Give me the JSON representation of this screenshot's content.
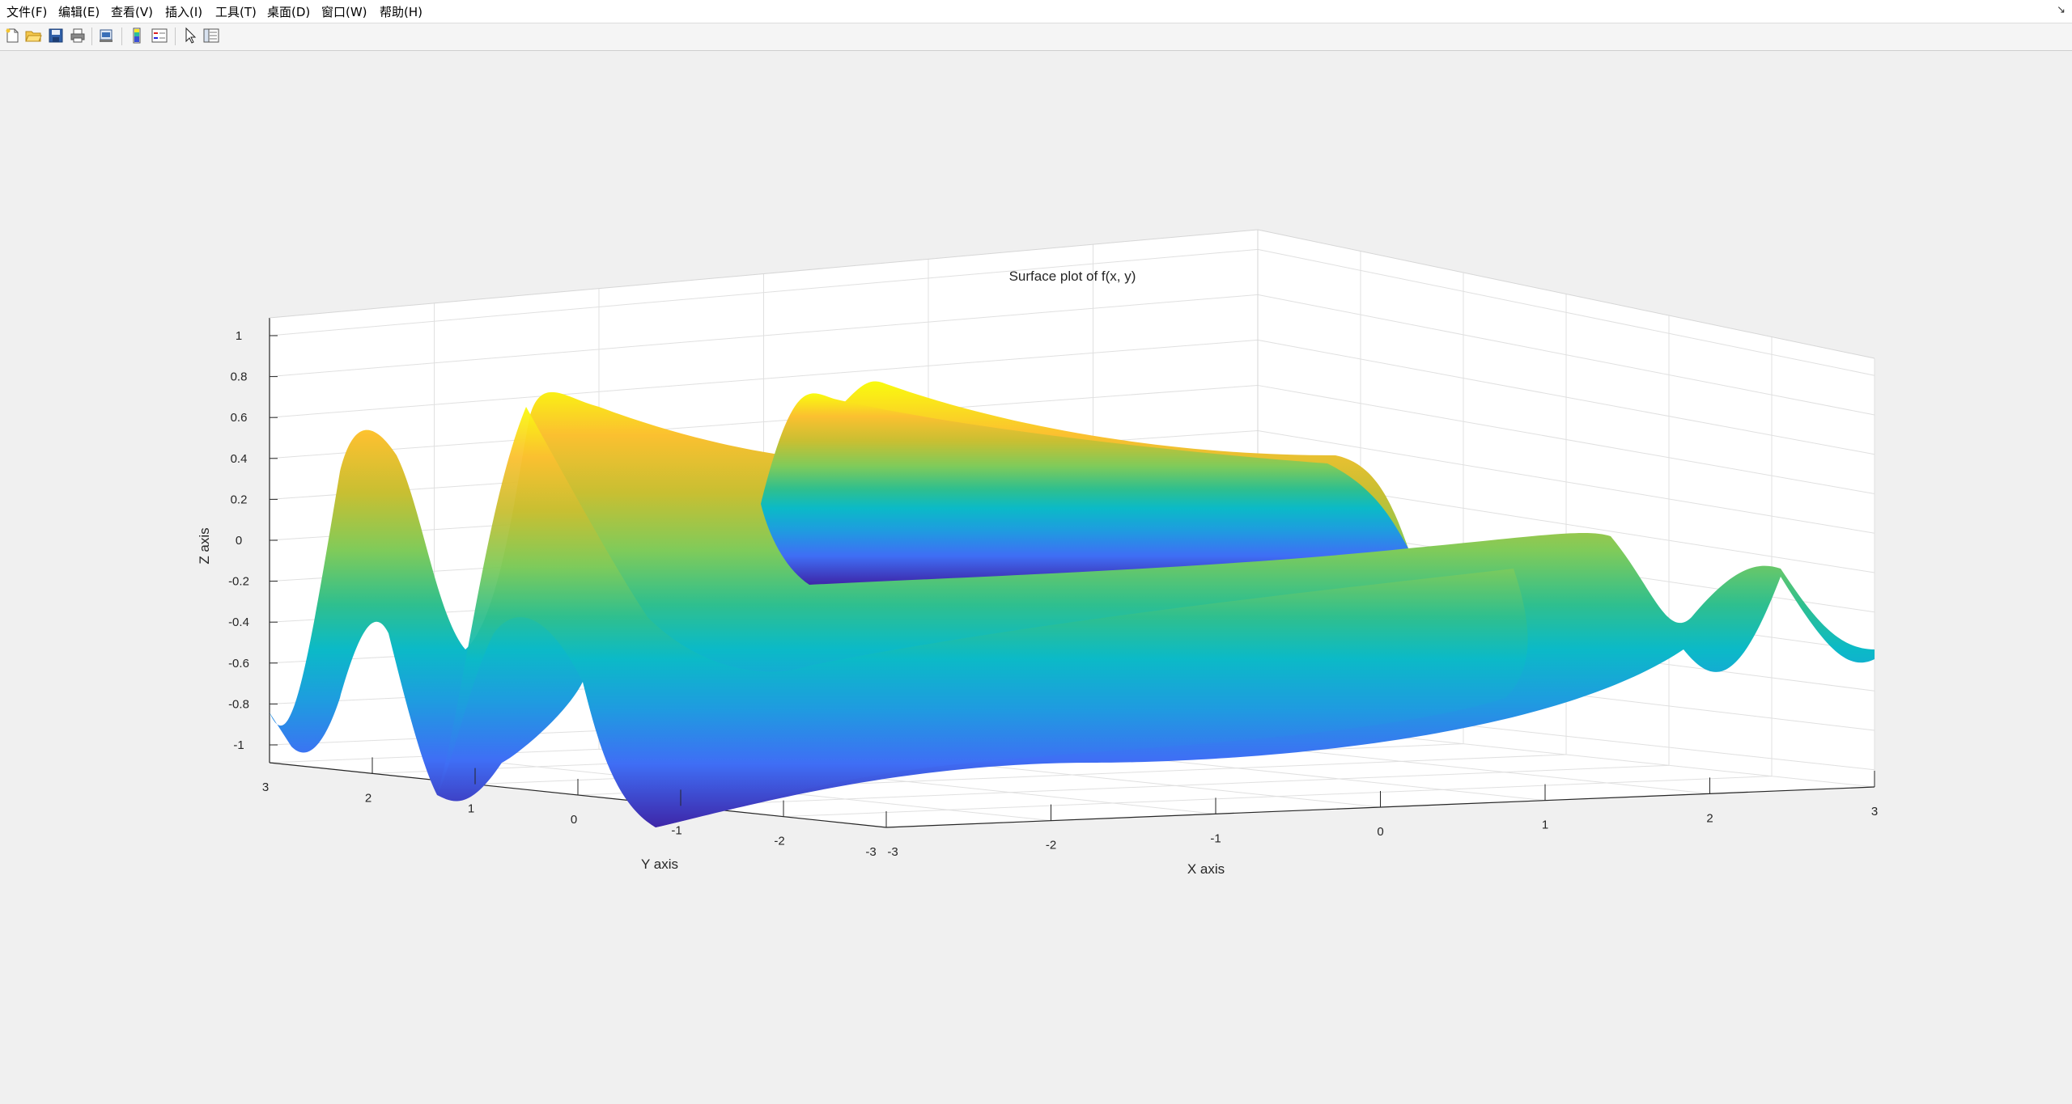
{
  "menubar": {
    "items": [
      "文件(F)",
      "编辑(E)",
      "查看(V)",
      "插入(I)",
      "工具(T)",
      "桌面(D)",
      "窗口(W)",
      "帮助(H)"
    ],
    "corner_icon": "undock-arrow-icon"
  },
  "toolbar": {
    "buttons": [
      {
        "name": "new-figure-icon"
      },
      {
        "name": "open-file-icon"
      },
      {
        "name": "save-icon"
      },
      {
        "name": "print-icon"
      },
      {
        "name": "print-preview-icon"
      },
      {
        "name": "colorbar-icon"
      },
      {
        "name": "legend-icon"
      },
      {
        "name": "edit-plot-cursor-icon"
      },
      {
        "name": "property-inspector-icon"
      }
    ]
  },
  "chart_data": {
    "type": "surface",
    "title": "Surface plot of f(x, y)",
    "xlabel": "X axis",
    "ylabel": "Y axis",
    "zlabel": "Z axis",
    "xlim": [
      -3,
      3
    ],
    "ylim": [
      -3,
      3
    ],
    "zlim": [
      -1,
      1
    ],
    "x_ticks": [
      "-3",
      "-2",
      "-1",
      "0",
      "1",
      "2",
      "3"
    ],
    "y_ticks": [
      "-3",
      "-2",
      "-1",
      "0",
      "1",
      "2",
      "3"
    ],
    "z_ticks": [
      "-1",
      "-0.8",
      "-0.6",
      "-0.4",
      "-0.2",
      "0",
      "0.2",
      "0.4",
      "0.6",
      "0.8",
      "1"
    ],
    "colormap": "parula",
    "grid": true,
    "colors": {
      "background": "#f0f0f0",
      "axes_background": "#ffffff",
      "grid": "#e0e0e0",
      "axis_line": "#262626"
    }
  }
}
